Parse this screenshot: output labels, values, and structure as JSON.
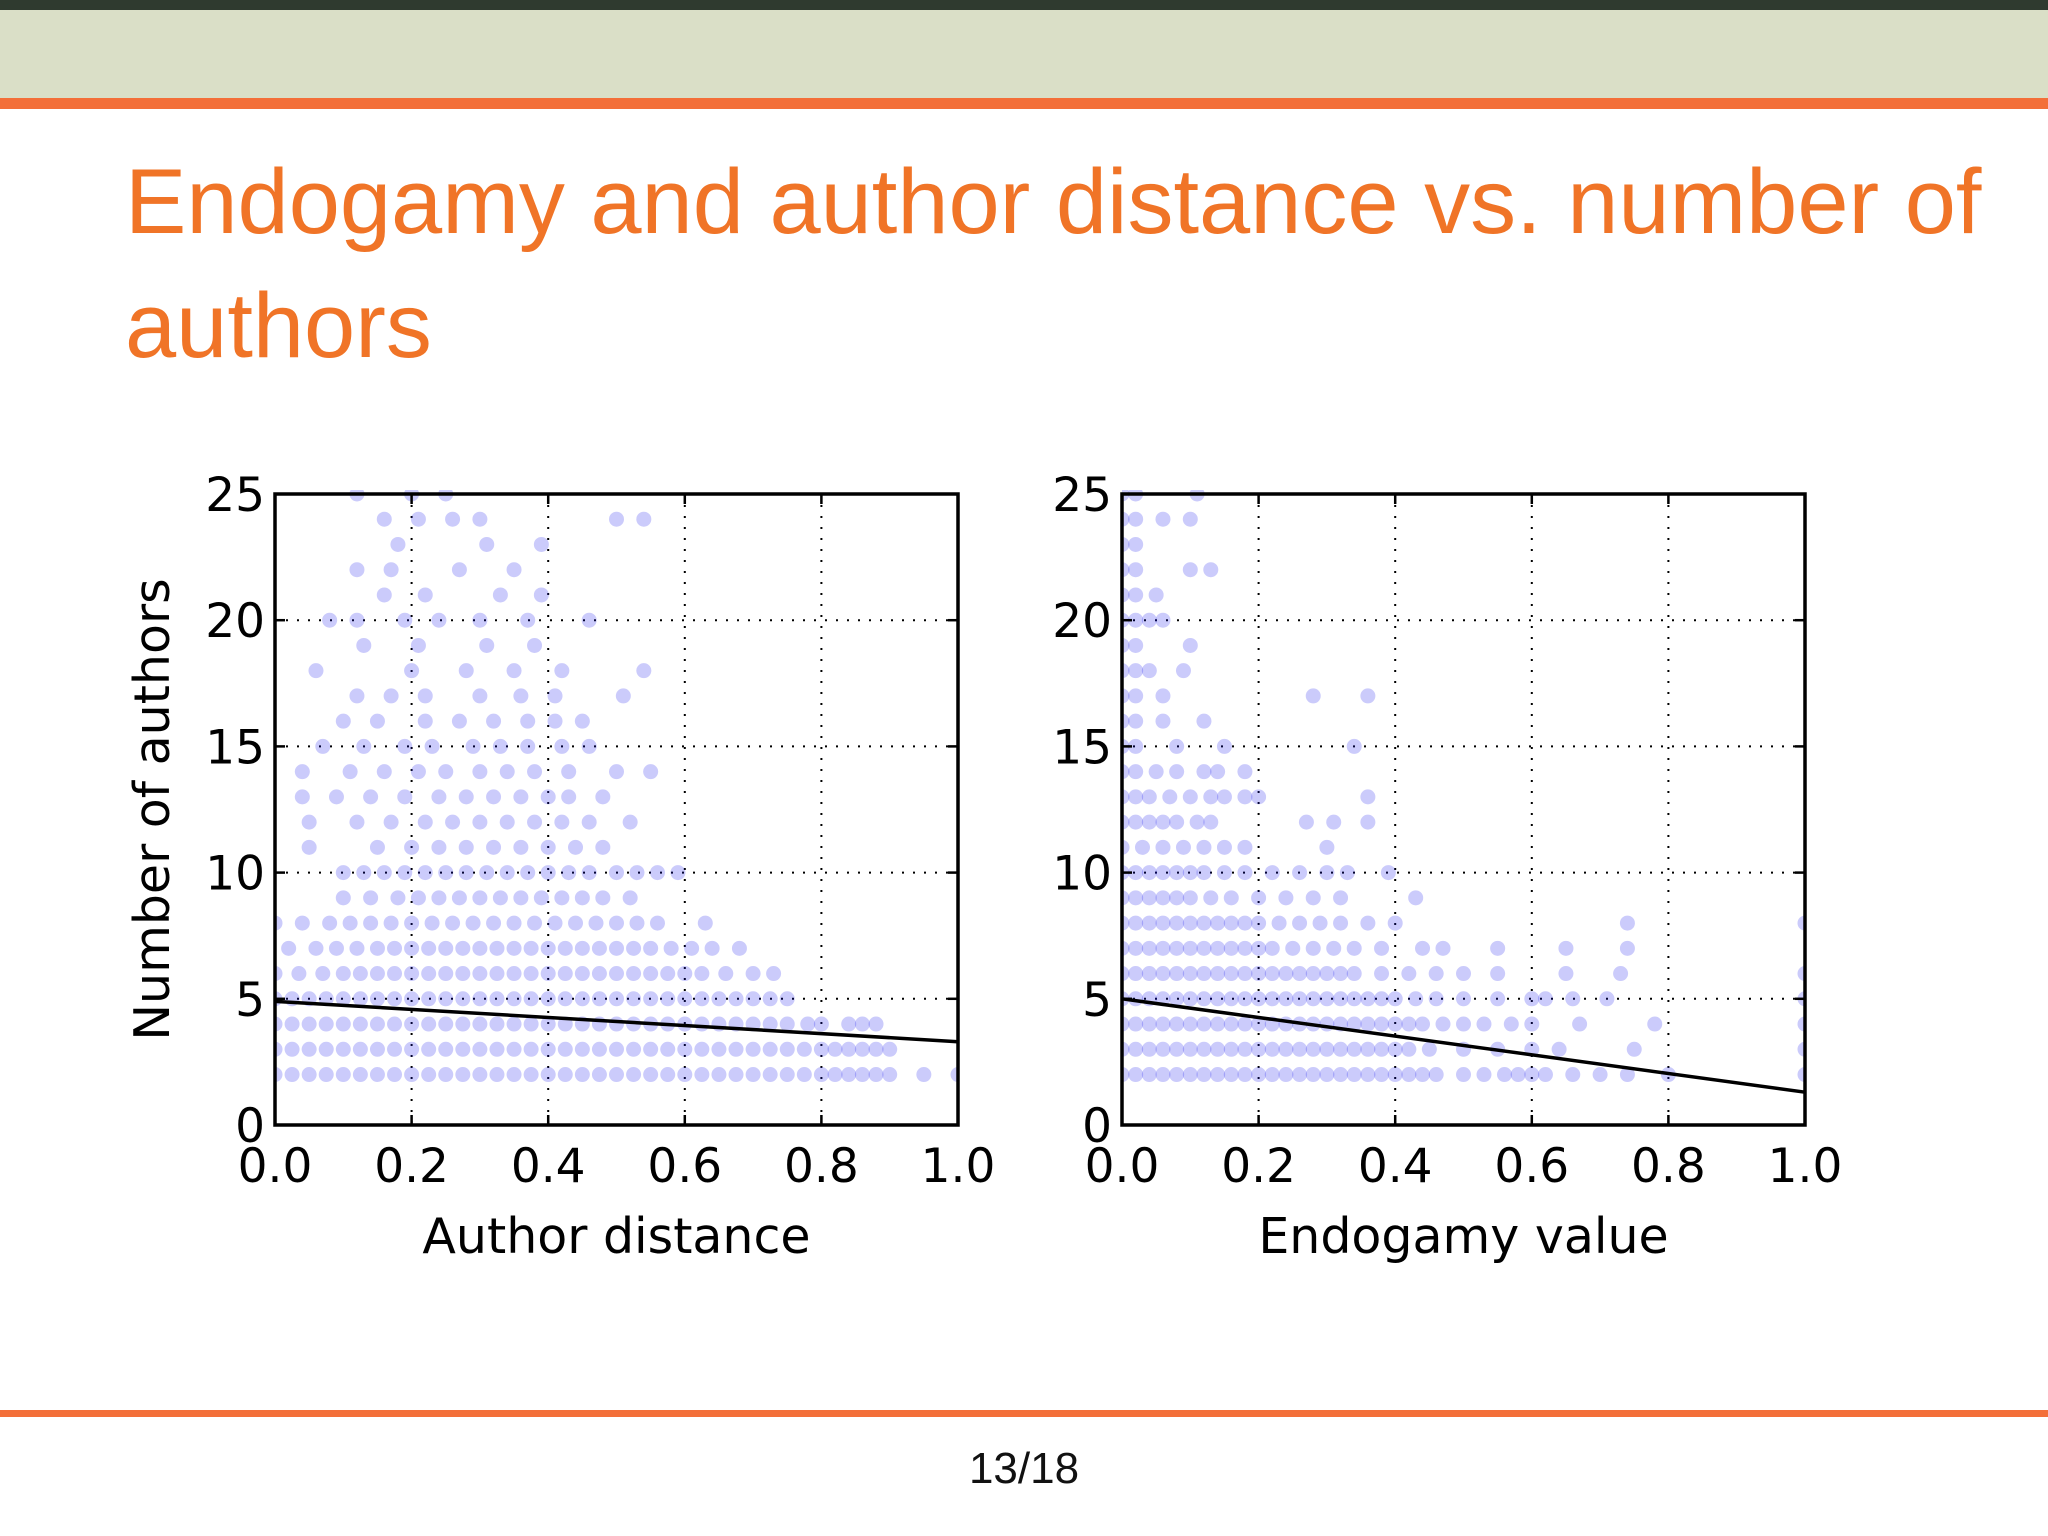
{
  "slide": {
    "title": "Endogamy and author distance vs. number of authors",
    "page_number": "13/18"
  },
  "colors": {
    "title": "#f07427",
    "rule": "#f36f39",
    "header_band": "#dadfc7",
    "points": "#1010ee",
    "fit_line": "#000000"
  },
  "chart_data": [
    {
      "type": "scatter",
      "xlabel": "Author distance",
      "ylabel": "Number of authors",
      "xlim": [
        0.0,
        1.0
      ],
      "ylim": [
        0,
        25
      ],
      "x_ticks": [
        "0.0",
        "0.2",
        "0.4",
        "0.6",
        "0.8",
        "1.0"
      ],
      "y_ticks": [
        "0",
        "5",
        "10",
        "15",
        "20",
        "25"
      ],
      "grid": true,
      "grid_style": "dotted",
      "point_alpha": 0.22,
      "fit_line": [
        [
          0.0,
          4.9
        ],
        [
          1.0,
          3.3
        ]
      ],
      "points_by_count": [
        {
          "y": 2,
          "x": [
            0.0,
            0.025,
            0.05,
            0.075,
            0.1,
            0.125,
            0.15,
            0.175,
            0.2,
            0.225,
            0.25,
            0.275,
            0.3,
            0.325,
            0.35,
            0.375,
            0.4,
            0.425,
            0.45,
            0.475,
            0.5,
            0.525,
            0.55,
            0.575,
            0.6,
            0.625,
            0.65,
            0.675,
            0.7,
            0.725,
            0.75,
            0.775,
            0.8,
            0.82,
            0.84,
            0.86,
            0.88,
            0.9,
            0.95,
            1.0
          ]
        },
        {
          "y": 3,
          "x": [
            0.0,
            0.025,
            0.05,
            0.075,
            0.1,
            0.125,
            0.15,
            0.175,
            0.2,
            0.225,
            0.25,
            0.275,
            0.3,
            0.325,
            0.35,
            0.375,
            0.4,
            0.425,
            0.45,
            0.475,
            0.5,
            0.525,
            0.55,
            0.575,
            0.6,
            0.625,
            0.65,
            0.675,
            0.7,
            0.725,
            0.75,
            0.775,
            0.8,
            0.82,
            0.84,
            0.86,
            0.88,
            0.9
          ]
        },
        {
          "y": 4,
          "x": [
            0.0,
            0.025,
            0.05,
            0.075,
            0.1,
            0.125,
            0.15,
            0.175,
            0.2,
            0.225,
            0.25,
            0.275,
            0.3,
            0.325,
            0.35,
            0.375,
            0.4,
            0.425,
            0.45,
            0.475,
            0.5,
            0.525,
            0.55,
            0.575,
            0.6,
            0.625,
            0.65,
            0.675,
            0.7,
            0.725,
            0.75,
            0.78,
            0.8,
            0.84,
            0.86,
            0.88
          ]
        },
        {
          "y": 5,
          "x": [
            0.0,
            0.025,
            0.05,
            0.075,
            0.1,
            0.125,
            0.15,
            0.175,
            0.2,
            0.225,
            0.25,
            0.275,
            0.3,
            0.325,
            0.35,
            0.375,
            0.4,
            0.425,
            0.45,
            0.475,
            0.5,
            0.525,
            0.55,
            0.575,
            0.6,
            0.625,
            0.65,
            0.675,
            0.7,
            0.725,
            0.75
          ]
        },
        {
          "y": 6,
          "x": [
            0.0,
            0.035,
            0.07,
            0.1,
            0.125,
            0.15,
            0.175,
            0.2,
            0.225,
            0.25,
            0.275,
            0.3,
            0.325,
            0.35,
            0.375,
            0.4,
            0.425,
            0.45,
            0.475,
            0.5,
            0.525,
            0.55,
            0.575,
            0.6,
            0.625,
            0.66,
            0.7,
            0.73
          ]
        },
        {
          "y": 7,
          "x": [
            0.02,
            0.06,
            0.09,
            0.12,
            0.15,
            0.175,
            0.2,
            0.225,
            0.25,
            0.275,
            0.3,
            0.325,
            0.35,
            0.375,
            0.4,
            0.425,
            0.45,
            0.475,
            0.5,
            0.525,
            0.55,
            0.58,
            0.61,
            0.64,
            0.68
          ]
        },
        {
          "y": 8,
          "x": [
            0.0,
            0.04,
            0.08,
            0.11,
            0.14,
            0.17,
            0.2,
            0.23,
            0.26,
            0.29,
            0.32,
            0.35,
            0.38,
            0.41,
            0.44,
            0.47,
            0.5,
            0.53,
            0.56,
            0.63
          ]
        },
        {
          "y": 9,
          "x": [
            0.1,
            0.14,
            0.18,
            0.21,
            0.24,
            0.27,
            0.3,
            0.33,
            0.36,
            0.39,
            0.42,
            0.45,
            0.48,
            0.52
          ]
        },
        {
          "y": 10,
          "x": [
            0.1,
            0.13,
            0.16,
            0.19,
            0.22,
            0.25,
            0.28,
            0.31,
            0.34,
            0.37,
            0.4,
            0.43,
            0.46,
            0.5,
            0.53,
            0.56,
            0.59
          ]
        },
        {
          "y": 11,
          "x": [
            0.05,
            0.15,
            0.2,
            0.24,
            0.28,
            0.32,
            0.36,
            0.4,
            0.44,
            0.48
          ]
        },
        {
          "y": 12,
          "x": [
            0.05,
            0.12,
            0.17,
            0.22,
            0.26,
            0.3,
            0.34,
            0.38,
            0.42,
            0.46,
            0.52
          ]
        },
        {
          "y": 13,
          "x": [
            0.04,
            0.09,
            0.14,
            0.19,
            0.24,
            0.28,
            0.32,
            0.36,
            0.4,
            0.43,
            0.48
          ]
        },
        {
          "y": 14,
          "x": [
            0.04,
            0.11,
            0.16,
            0.21,
            0.25,
            0.3,
            0.34,
            0.38,
            0.43,
            0.5,
            0.55
          ]
        },
        {
          "y": 15,
          "x": [
            0.07,
            0.13,
            0.19,
            0.23,
            0.29,
            0.33,
            0.37,
            0.42,
            0.46
          ]
        },
        {
          "y": 16,
          "x": [
            0.1,
            0.15,
            0.22,
            0.27,
            0.32,
            0.37,
            0.41,
            0.45
          ]
        },
        {
          "y": 17,
          "x": [
            0.12,
            0.17,
            0.22,
            0.3,
            0.36,
            0.41,
            0.51
          ]
        },
        {
          "y": 18,
          "x": [
            0.06,
            0.2,
            0.28,
            0.35,
            0.42,
            0.54
          ]
        },
        {
          "y": 19,
          "x": [
            0.13,
            0.21,
            0.31,
            0.38
          ]
        },
        {
          "y": 20,
          "x": [
            0.08,
            0.12,
            0.19,
            0.24,
            0.3,
            0.37,
            0.46
          ]
        },
        {
          "y": 21,
          "x": [
            0.16,
            0.22,
            0.33,
            0.39
          ]
        },
        {
          "y": 22,
          "x": [
            0.12,
            0.17,
            0.27,
            0.35
          ]
        },
        {
          "y": 23,
          "x": [
            0.18,
            0.31,
            0.39
          ]
        },
        {
          "y": 24,
          "x": [
            0.16,
            0.21,
            0.26,
            0.3,
            0.5,
            0.54
          ]
        },
        {
          "y": 25,
          "x": [
            0.12,
            0.2,
            0.25
          ]
        }
      ]
    },
    {
      "type": "scatter",
      "xlabel": "Endogamy value",
      "ylabel": "",
      "xlim": [
        0.0,
        1.0
      ],
      "ylim": [
        0,
        25
      ],
      "x_ticks": [
        "0.0",
        "0.2",
        "0.4",
        "0.6",
        "0.8",
        "1.0"
      ],
      "y_ticks": [
        "0",
        "5",
        "10",
        "15",
        "20",
        "25"
      ],
      "grid": true,
      "grid_style": "dotted",
      "point_alpha": 0.22,
      "fit_line": [
        [
          0.0,
          5.0
        ],
        [
          1.0,
          1.3
        ]
      ],
      "points_by_count": [
        {
          "y": 2,
          "x": [
            0.0,
            0.02,
            0.04,
            0.06,
            0.08,
            0.1,
            0.12,
            0.14,
            0.16,
            0.18,
            0.2,
            0.22,
            0.24,
            0.26,
            0.28,
            0.3,
            0.32,
            0.34,
            0.36,
            0.38,
            0.4,
            0.42,
            0.44,
            0.46,
            0.5,
            0.53,
            0.56,
            0.58,
            0.6,
            0.62,
            0.66,
            0.7,
            0.74,
            0.8,
            1.0
          ]
        },
        {
          "y": 3,
          "x": [
            0.0,
            0.02,
            0.04,
            0.06,
            0.08,
            0.1,
            0.12,
            0.14,
            0.16,
            0.18,
            0.2,
            0.22,
            0.24,
            0.26,
            0.28,
            0.3,
            0.32,
            0.34,
            0.36,
            0.38,
            0.4,
            0.42,
            0.45,
            0.5,
            0.55,
            0.6,
            0.64,
            0.75,
            1.0
          ]
        },
        {
          "y": 4,
          "x": [
            0.0,
            0.02,
            0.04,
            0.06,
            0.08,
            0.1,
            0.12,
            0.14,
            0.16,
            0.18,
            0.2,
            0.22,
            0.24,
            0.26,
            0.28,
            0.3,
            0.32,
            0.34,
            0.36,
            0.38,
            0.4,
            0.42,
            0.44,
            0.47,
            0.5,
            0.53,
            0.57,
            0.6,
            0.67,
            0.78,
            1.0
          ]
        },
        {
          "y": 5,
          "x": [
            0.0,
            0.02,
            0.04,
            0.06,
            0.08,
            0.1,
            0.12,
            0.14,
            0.16,
            0.18,
            0.2,
            0.22,
            0.24,
            0.26,
            0.28,
            0.3,
            0.32,
            0.34,
            0.36,
            0.38,
            0.4,
            0.43,
            0.46,
            0.5,
            0.55,
            0.6,
            0.62,
            0.66,
            0.71,
            1.0
          ]
        },
        {
          "y": 6,
          "x": [
            0.0,
            0.02,
            0.04,
            0.06,
            0.08,
            0.1,
            0.12,
            0.14,
            0.16,
            0.18,
            0.2,
            0.22,
            0.24,
            0.26,
            0.28,
            0.3,
            0.32,
            0.34,
            0.38,
            0.42,
            0.46,
            0.5,
            0.55,
            0.65,
            0.73,
            1.0
          ]
        },
        {
          "y": 7,
          "x": [
            0.0,
            0.02,
            0.04,
            0.06,
            0.08,
            0.1,
            0.12,
            0.14,
            0.16,
            0.18,
            0.2,
            0.22,
            0.25,
            0.28,
            0.31,
            0.34,
            0.38,
            0.44,
            0.47,
            0.55,
            0.65,
            0.74
          ]
        },
        {
          "y": 8,
          "x": [
            0.0,
            0.02,
            0.04,
            0.06,
            0.08,
            0.1,
            0.12,
            0.14,
            0.16,
            0.18,
            0.2,
            0.23,
            0.26,
            0.29,
            0.32,
            0.36,
            0.4,
            0.74,
            1.0
          ]
        },
        {
          "y": 9,
          "x": [
            0.0,
            0.02,
            0.04,
            0.06,
            0.08,
            0.1,
            0.13,
            0.16,
            0.2,
            0.24,
            0.28,
            0.32,
            0.43
          ]
        },
        {
          "y": 10,
          "x": [
            0.0,
            0.02,
            0.04,
            0.06,
            0.08,
            0.1,
            0.12,
            0.15,
            0.18,
            0.22,
            0.26,
            0.3,
            0.33,
            0.39
          ]
        },
        {
          "y": 11,
          "x": [
            0.0,
            0.03,
            0.06,
            0.09,
            0.12,
            0.15,
            0.18,
            0.3
          ]
        },
        {
          "y": 12,
          "x": [
            0.0,
            0.02,
            0.04,
            0.06,
            0.08,
            0.11,
            0.13,
            0.27,
            0.31,
            0.36
          ]
        },
        {
          "y": 13,
          "x": [
            0.0,
            0.02,
            0.04,
            0.07,
            0.1,
            0.13,
            0.15,
            0.18,
            0.2,
            0.36
          ]
        },
        {
          "y": 14,
          "x": [
            0.0,
            0.02,
            0.05,
            0.08,
            0.12,
            0.14,
            0.18
          ]
        },
        {
          "y": 15,
          "x": [
            0.0,
            0.02,
            0.08,
            0.15,
            0.34
          ]
        },
        {
          "y": 16,
          "x": [
            0.0,
            0.02,
            0.06,
            0.12
          ]
        },
        {
          "y": 17,
          "x": [
            0.0,
            0.02,
            0.06,
            0.28,
            0.36
          ]
        },
        {
          "y": 18,
          "x": [
            0.0,
            0.02,
            0.04,
            0.09
          ]
        },
        {
          "y": 19,
          "x": [
            0.0,
            0.02,
            0.1
          ]
        },
        {
          "y": 20,
          "x": [
            0.0,
            0.02,
            0.04,
            0.06
          ]
        },
        {
          "y": 21,
          "x": [
            0.0,
            0.02,
            0.05
          ]
        },
        {
          "y": 22,
          "x": [
            0.0,
            0.02,
            0.1,
            0.13
          ]
        },
        {
          "y": 23,
          "x": [
            0.0,
            0.02
          ]
        },
        {
          "y": 24,
          "x": [
            0.0,
            0.02,
            0.06,
            0.1
          ]
        },
        {
          "y": 25,
          "x": [
            0.0,
            0.02,
            0.11
          ]
        }
      ]
    }
  ]
}
